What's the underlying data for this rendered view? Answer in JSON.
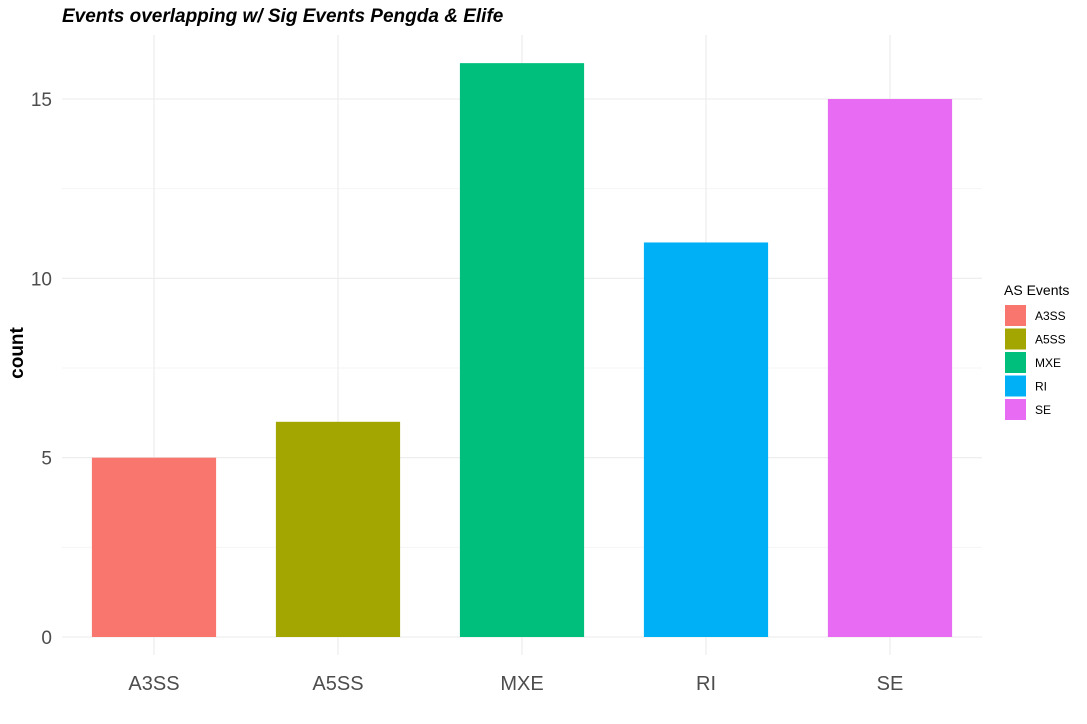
{
  "chart_data": {
    "type": "bar",
    "title": "Events overlapping w/  Sig Events Pengda & Elife",
    "xlabel": "",
    "ylabel": "count",
    "categories": [
      "A3SS",
      "A5SS",
      "MXE",
      "RI",
      "SE"
    ],
    "values": [
      5,
      6,
      16,
      11,
      15
    ],
    "colors": [
      "#F8766D",
      "#A3A500",
      "#00BF7D",
      "#00B0F6",
      "#E76BF3"
    ],
    "ylim": [
      0,
      16.8
    ],
    "yticks": [
      0,
      5,
      10,
      15
    ],
    "grid": true,
    "legend": {
      "title": "AS Events",
      "placement": "right",
      "entries": [
        "A3SS",
        "A5SS",
        "MXE",
        "RI",
        "SE"
      ]
    }
  }
}
